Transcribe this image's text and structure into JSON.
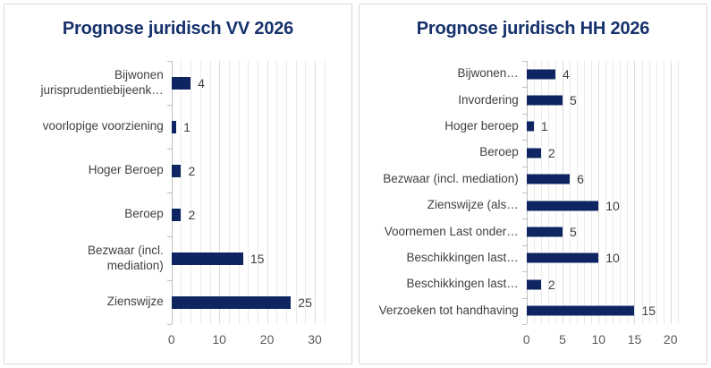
{
  "colors": {
    "bar": "#0E2562",
    "title": "#16316B",
    "category_text": "#404040",
    "value_text": "#404040",
    "axis_text": "#595959",
    "gridline_minor": "#EAEAEA",
    "gridline_major": "#DCDCDC",
    "axis_line": "#BFBFBF",
    "card_border": "#D8D8D8"
  },
  "chart_data": [
    {
      "type": "bar",
      "orientation": "horizontal",
      "title": "Prognose juridisch VV 2026",
      "xlabel": "",
      "ylabel": "",
      "bar_color": "#0E2562",
      "grid": true,
      "legend": false,
      "categories_top_to_bottom": [
        "Bijwonen\njurisprudentiebijeenk…",
        "voorlopige voorziening",
        "Hoger Beroep",
        "Beroep",
        "Bezwaar (incl.\nmediation)",
        "Zienswijze"
      ],
      "values": [
        4,
        1,
        2,
        2,
        15,
        25
      ],
      "axis": {
        "xlim": [
          0,
          32.7
        ],
        "tick_labels": [
          0,
          10,
          20,
          30
        ],
        "minor_gridline_step": 2,
        "major_gridline_step": 10
      }
    },
    {
      "type": "bar",
      "orientation": "horizontal",
      "title": "Prognose juridisch HH 2026",
      "xlabel": "",
      "ylabel": "",
      "bar_color": "#0E2562",
      "grid": true,
      "legend": false,
      "categories_top_to_bottom": [
        "Bijwonen…",
        "Invordering",
        "Hoger beroep",
        "Beroep",
        "Bezwaar (incl. mediation)",
        "Zienswijze (als…",
        "Voornemen Last onder…",
        "Beschikkingen last…",
        "Beschikkingen last…",
        "Verzoeken tot handhaving"
      ],
      "values": [
        4,
        5,
        1,
        2,
        6,
        10,
        5,
        10,
        2,
        15
      ],
      "axis": {
        "xlim": [
          0,
          21.7
        ],
        "tick_labels": [
          0,
          5,
          10,
          15,
          20
        ],
        "minor_gridline_step": 1,
        "major_gridline_step": 5
      }
    }
  ]
}
